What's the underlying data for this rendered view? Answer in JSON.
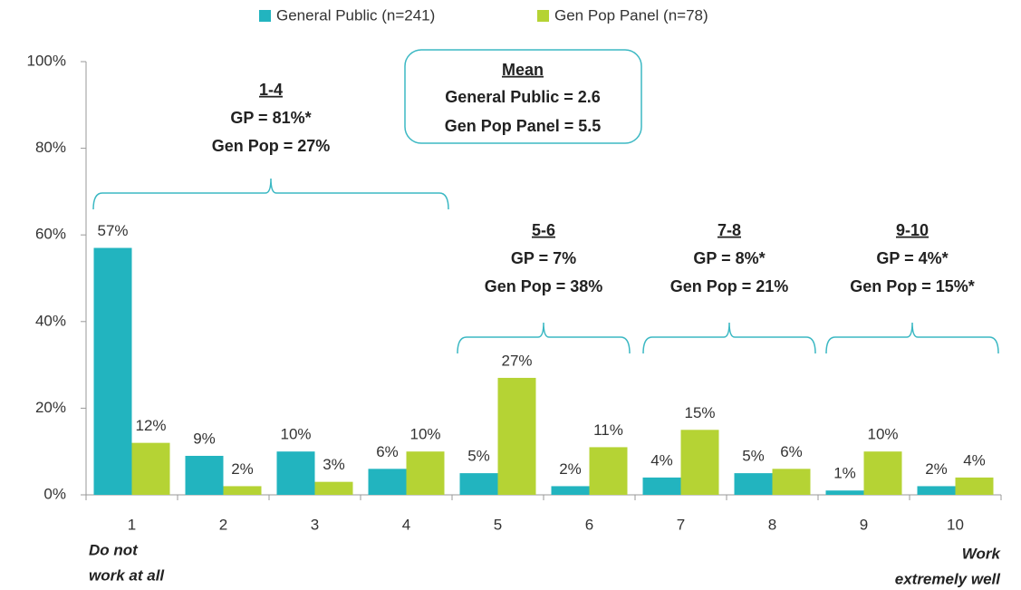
{
  "chart_data": {
    "type": "bar",
    "categories": [
      "1",
      "2",
      "3",
      "4",
      "5",
      "6",
      "7",
      "8",
      "9",
      "10"
    ],
    "series": [
      {
        "name": "General Public (n=241)",
        "color": "#22b4bf",
        "values": [
          57,
          9,
          10,
          6,
          5,
          2,
          4,
          5,
          1,
          2
        ],
        "value_labels": [
          "57%",
          "9%",
          "10%",
          "6%",
          "5%",
          "2%",
          "4%",
          "5%",
          "1%",
          "2%"
        ]
      },
      {
        "name": "Gen Pop Panel (n=78)",
        "color": "#b5d334",
        "values": [
          12,
          2,
          3,
          10,
          27,
          11,
          15,
          6,
          10,
          4
        ],
        "value_labels": [
          "12%",
          "2%",
          "3%",
          "10%",
          "27%",
          "11%",
          "15%",
          "6%",
          "10%",
          "4%"
        ]
      }
    ],
    "ylim": [
      0,
      100
    ],
    "yticks": [
      {
        "value": 0,
        "label": "0%"
      },
      {
        "value": 20,
        "label": "20%"
      },
      {
        "value": 40,
        "label": "40%"
      },
      {
        "value": 60,
        "label": "60%"
      },
      {
        "value": 80,
        "label": "80%"
      },
      {
        "value": 100,
        "label": "100%"
      }
    ],
    "legend": "top",
    "groups": [
      {
        "range": "1-4",
        "lines": [
          "GP = 81%*",
          "Gen Pop = 27%"
        ]
      },
      {
        "range": "5-6",
        "lines": [
          "GP = 7%",
          "Gen Pop = 38%"
        ]
      },
      {
        "range": "7-8",
        "lines": [
          "GP = 8%*",
          "Gen Pop = 21%"
        ]
      },
      {
        "range": "9-10",
        "lines": [
          "GP = 4%*",
          "Gen Pop = 15%*"
        ]
      }
    ],
    "mean_box": {
      "title": "Mean",
      "lines": [
        "General Public = 2.6",
        "Gen Pop Panel = 5.5"
      ]
    },
    "end_labels": {
      "left": [
        "Do not",
        "work at all"
      ],
      "right": [
        "Work",
        "extremely well"
      ]
    }
  }
}
